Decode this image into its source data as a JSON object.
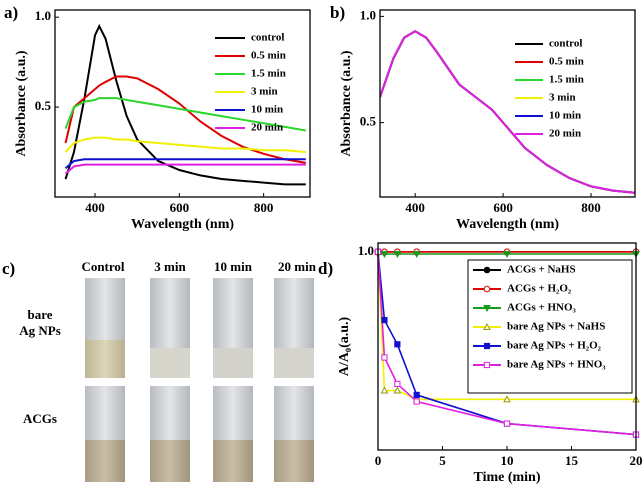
{
  "chart_data": [
    {
      "type": "line",
      "label": "a)",
      "xlabel": "Wavelength (nm)",
      "ylabel": "Absorbance (a.u.)",
      "x": [
        330,
        350,
        375,
        400,
        410,
        425,
        450,
        475,
        500,
        550,
        600,
        650,
        700,
        750,
        800,
        850,
        900
      ],
      "xlim": [
        305,
        910
      ],
      "xticks": [
        400,
        600,
        800
      ],
      "ylim": [
        0,
        1.04
      ],
      "yticks": [
        0.5,
        {
          "value": 1,
          "label": "1.0"
        }
      ],
      "series": [
        {
          "name": "control",
          "color": "#000000",
          "values": [
            0.1,
            0.25,
            0.55,
            0.9,
            0.95,
            0.88,
            0.65,
            0.45,
            0.32,
            0.2,
            0.15,
            0.12,
            0.1,
            0.09,
            0.08,
            0.07,
            0.07
          ]
        },
        {
          "name": "0.5 min",
          "color": "#e00000",
          "values": [
            0.3,
            0.5,
            0.55,
            0.6,
            0.62,
            0.64,
            0.67,
            0.67,
            0.66,
            0.6,
            0.52,
            0.42,
            0.34,
            0.28,
            0.24,
            0.21,
            0.19
          ]
        },
        {
          "name": "1.5 min",
          "color": "#2bd62b",
          "values": [
            0.38,
            0.5,
            0.53,
            0.54,
            0.55,
            0.55,
            0.55,
            0.54,
            0.53,
            0.51,
            0.49,
            0.47,
            0.45,
            0.43,
            0.41,
            0.39,
            0.37
          ]
        },
        {
          "name": "3 min",
          "color": "#f0f000",
          "values": [
            0.25,
            0.3,
            0.32,
            0.33,
            0.33,
            0.33,
            0.32,
            0.32,
            0.31,
            0.3,
            0.29,
            0.28,
            0.27,
            0.27,
            0.26,
            0.26,
            0.25
          ]
        },
        {
          "name": "10 min",
          "color": "#1010d0",
          "values": [
            0.16,
            0.2,
            0.21,
            0.21,
            0.21,
            0.21,
            0.21,
            0.21,
            0.21,
            0.21,
            0.21,
            0.21,
            0.21,
            0.21,
            0.21,
            0.21,
            0.21
          ]
        },
        {
          "name": "20 min",
          "color": "#e020e0",
          "values": [
            0.13,
            0.17,
            0.18,
            0.18,
            0.18,
            0.18,
            0.18,
            0.18,
            0.18,
            0.18,
            0.18,
            0.18,
            0.18,
            0.18,
            0.18,
            0.18,
            0.18
          ]
        }
      ]
    },
    {
      "type": "line",
      "label": "b)",
      "xlabel": "Wavelength (nm)",
      "ylabel": "Absorbance (a.u.)",
      "x": [
        320,
        350,
        375,
        400,
        425,
        450,
        500,
        550,
        575,
        600,
        650,
        700,
        750,
        800,
        850,
        900
      ],
      "xlim": [
        320,
        900
      ],
      "xticks": [
        400,
        600,
        800
      ],
      "ylim": [
        0.15,
        1.03
      ],
      "yticks": [
        0.5,
        {
          "value": 1,
          "label": "1.0"
        }
      ],
      "series": [
        {
          "name": "control",
          "color": "#000000",
          "values": [
            0.62,
            0.8,
            0.9,
            0.93,
            0.9,
            0.83,
            0.68,
            0.6,
            0.56,
            0.5,
            0.38,
            0.3,
            0.24,
            0.2,
            0.18,
            0.17
          ]
        },
        {
          "name": "0.5 min",
          "color": "#e00000",
          "values": [
            0.62,
            0.8,
            0.9,
            0.93,
            0.9,
            0.83,
            0.68,
            0.6,
            0.56,
            0.5,
            0.38,
            0.3,
            0.24,
            0.2,
            0.18,
            0.17
          ]
        },
        {
          "name": "1.5 min",
          "color": "#2bd62b",
          "values": [
            0.62,
            0.8,
            0.9,
            0.93,
            0.9,
            0.83,
            0.68,
            0.6,
            0.56,
            0.5,
            0.38,
            0.3,
            0.24,
            0.2,
            0.18,
            0.17
          ]
        },
        {
          "name": "3 min",
          "color": "#f0f000",
          "values": [
            0.62,
            0.8,
            0.9,
            0.93,
            0.9,
            0.83,
            0.68,
            0.6,
            0.56,
            0.5,
            0.38,
            0.3,
            0.24,
            0.2,
            0.18,
            0.17
          ]
        },
        {
          "name": "10 min",
          "color": "#1010d0",
          "values": [
            0.62,
            0.8,
            0.9,
            0.93,
            0.9,
            0.83,
            0.68,
            0.6,
            0.56,
            0.5,
            0.38,
            0.3,
            0.24,
            0.2,
            0.18,
            0.17
          ]
        },
        {
          "name": "20 min",
          "color": "#e020e0",
          "values": [
            0.62,
            0.8,
            0.9,
            0.93,
            0.9,
            0.83,
            0.68,
            0.6,
            0.56,
            0.5,
            0.38,
            0.3,
            0.24,
            0.2,
            0.18,
            0.17
          ]
        }
      ]
    },
    {
      "type": "line",
      "label": "d)",
      "xlabel": "Time (min)",
      "ylabel": "A/A₀(a.u.)",
      "x": [
        0,
        0.5,
        1.5,
        3,
        10,
        20
      ],
      "xlim": [
        0,
        20
      ],
      "xticks": [
        0,
        5,
        10,
        15,
        20
      ],
      "ylim": [
        0.1,
        1.04
      ],
      "yticks": [
        {
          "value": 1,
          "label": "1.0"
        }
      ],
      "legend": "upper right",
      "series": [
        {
          "name": "ACGs + NaHS",
          "color": "#000000",
          "marker": "circle-filled",
          "values": [
            1,
            1,
            1,
            1,
            1,
            1
          ]
        },
        {
          "name": "ACGs + H₂O₂",
          "color": "#e00000",
          "marker": "circle-open",
          "values": [
            1,
            1,
            1,
            1,
            1,
            1
          ]
        },
        {
          "name": "ACGs + HNO₃",
          "color": "#1a9a1a",
          "marker": "triangle-down-filled",
          "values": [
            0.99,
            0.99,
            0.99,
            0.99,
            0.99,
            0.99
          ]
        },
        {
          "name": "bare Ag NPs + NaHS",
          "color": "#f0f000",
          "marker": "triangle-open",
          "values": [
            1,
            0.37,
            0.37,
            0.33,
            0.33,
            0.33
          ]
        },
        {
          "name": "bare Ag NPs + H₂O₂",
          "color": "#1010d0",
          "marker": "square-filled",
          "values": [
            1,
            0.69,
            0.58,
            0.35,
            0.22,
            0.17
          ]
        },
        {
          "name": "bare Ag NPs + HNO₃",
          "color": "#e020e0",
          "marker": "square-open",
          "values": [
            1,
            0.52,
            0.4,
            0.32,
            0.22,
            0.17
          ]
        }
      ]
    }
  ],
  "photo_panel": {
    "label": "c)",
    "columns": [
      "Control",
      "3 min",
      "10 min",
      "20 min"
    ],
    "rows": [
      [
        "bare",
        "Ag NPs"
      ],
      [
        "ACGs"
      ]
    ]
  }
}
